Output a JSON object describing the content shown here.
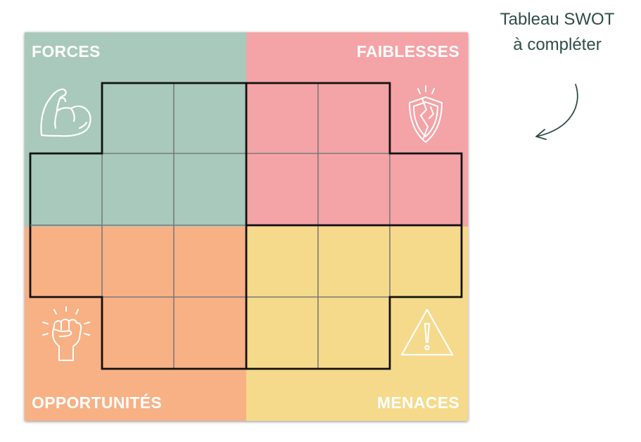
{
  "quadrants": {
    "strengths": {
      "label": "FORCES",
      "icon": "flexed-arm-icon",
      "color": "#a8c9bc"
    },
    "weaknesses": {
      "label": "FAIBLESSES",
      "icon": "broken-shield-icon",
      "color": "#f4a3a6"
    },
    "opportunities": {
      "label": "OPPORTUNITÉS",
      "icon": "raised-fist-icon",
      "color": "#f7b185"
    },
    "threats": {
      "label": "MENACES",
      "icon": "warning-triangle-icon",
      "color": "#f5da8b"
    }
  },
  "note": {
    "line1": "Tableau SWOT",
    "line2": "à compléter"
  }
}
